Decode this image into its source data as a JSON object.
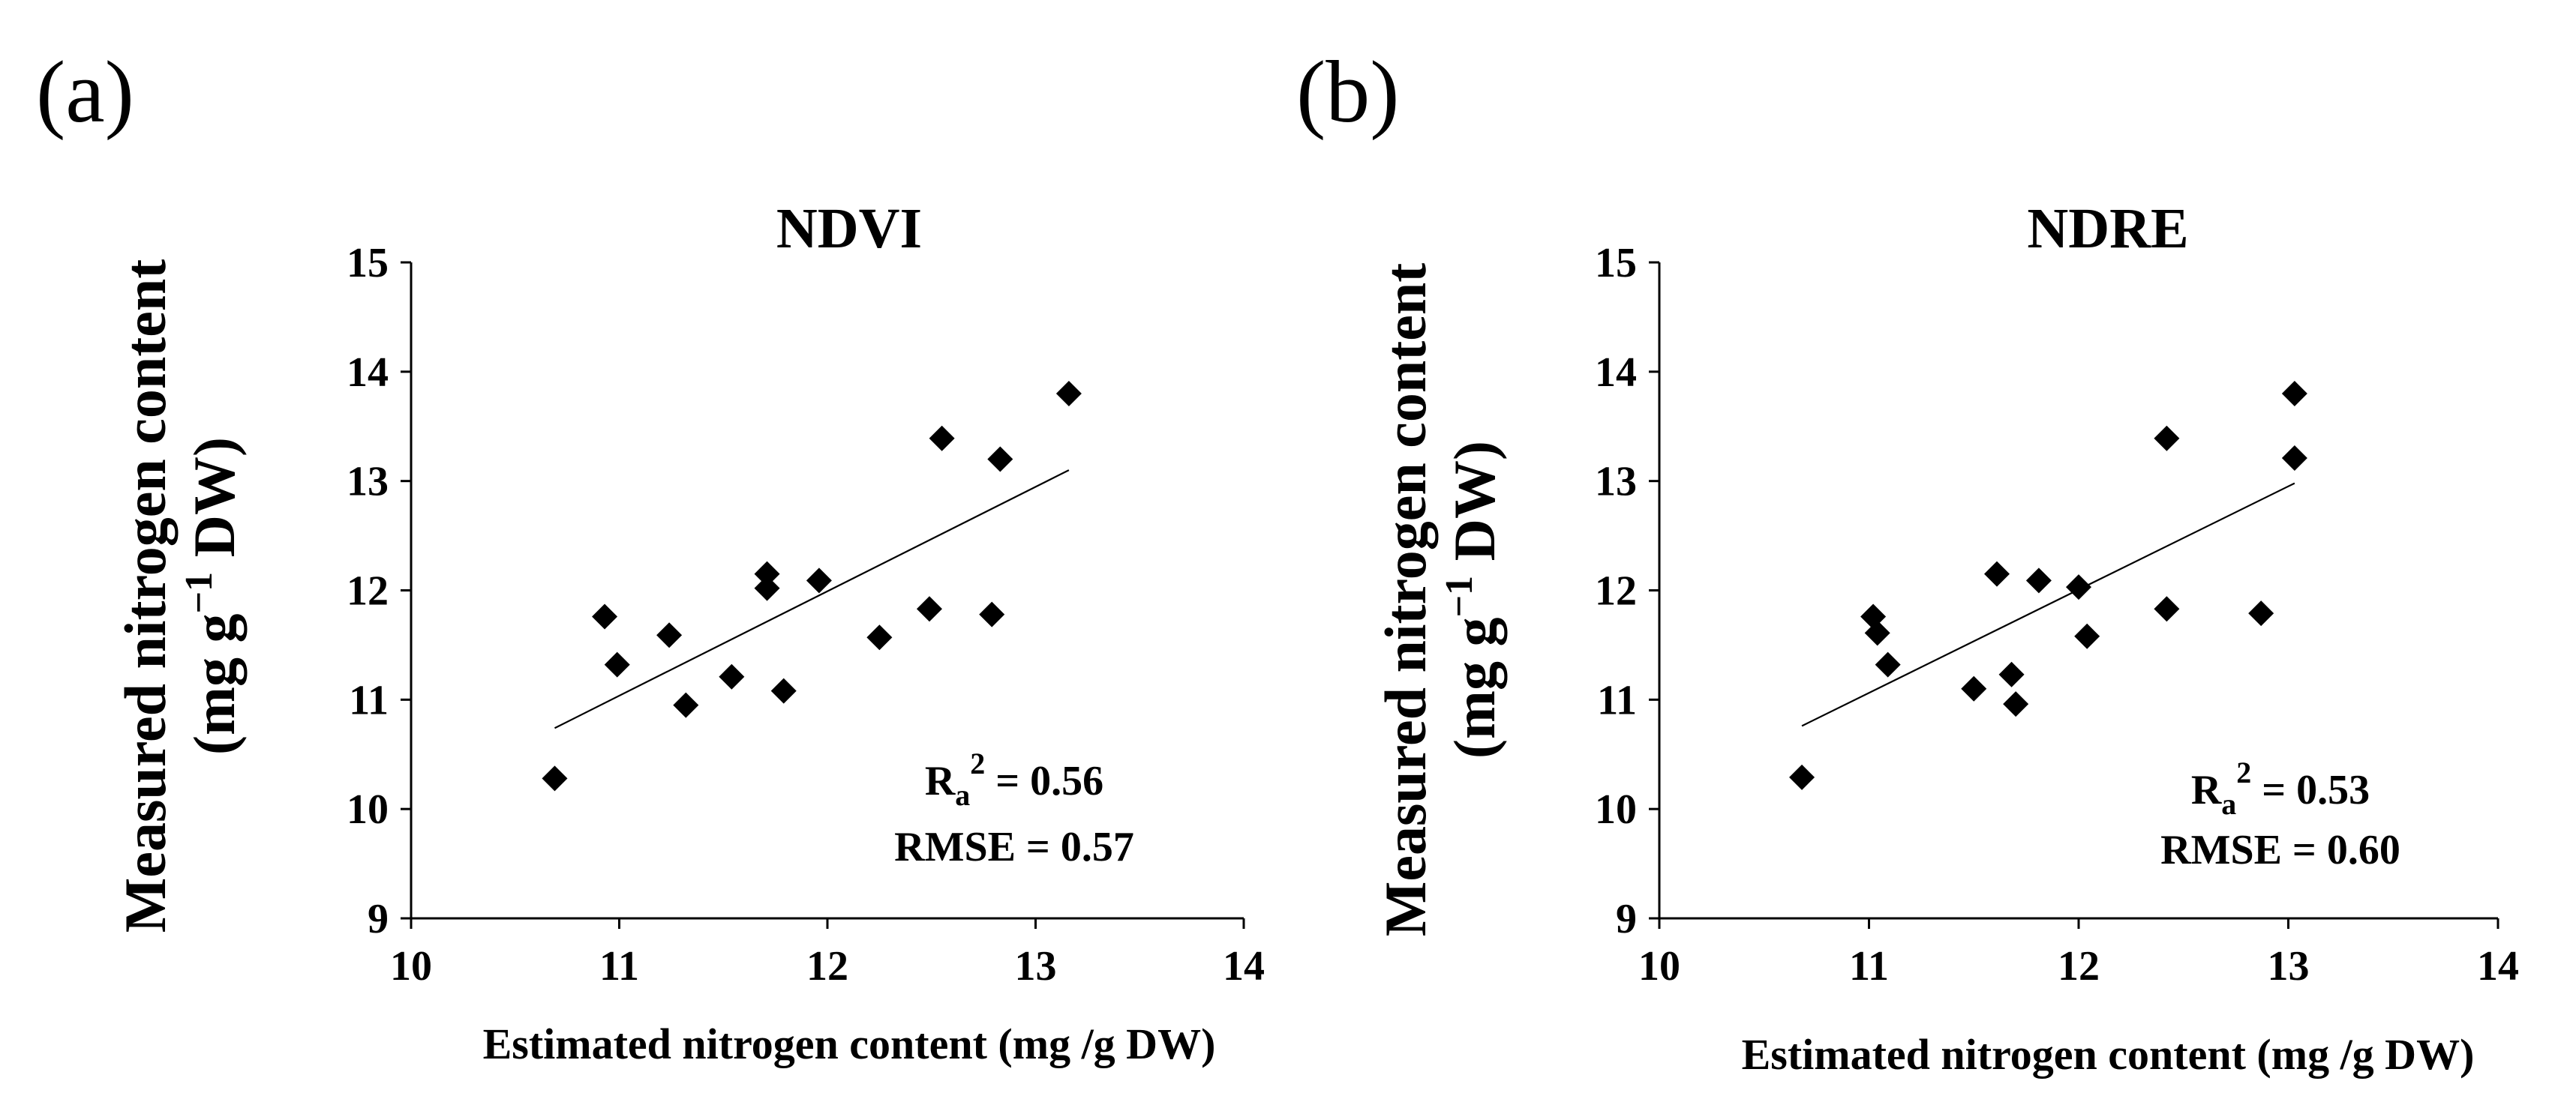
{
  "chart_data": [
    {
      "type": "scatter",
      "panel_label": "(a)",
      "title": "NDVI",
      "xlabel": "Estimated nitrogen content (mg /g DW)",
      "ylabel": [
        "Measured nitrogen content",
        "(mg g",
        "−1",
        " DW)"
      ],
      "xlim": [
        10,
        14
      ],
      "ylim": [
        9,
        15
      ],
      "xticks": [
        "10",
        "11",
        "12",
        "13",
        "14"
      ],
      "yticks": [
        "9",
        "10",
        "11",
        "12",
        "13",
        "14",
        "15"
      ],
      "points": [
        {
          "x": 10.69,
          "y": 10.28
        },
        {
          "x": 10.93,
          "y": 11.76
        },
        {
          "x": 10.99,
          "y": 11.32
        },
        {
          "x": 11.24,
          "y": 11.59
        },
        {
          "x": 11.32,
          "y": 10.95
        },
        {
          "x": 11.54,
          "y": 11.21
        },
        {
          "x": 11.71,
          "y": 12.15
        },
        {
          "x": 11.71,
          "y": 12.02
        },
        {
          "x": 11.79,
          "y": 11.08
        },
        {
          "x": 11.96,
          "y": 12.09
        },
        {
          "x": 12.25,
          "y": 11.57
        },
        {
          "x": 12.49,
          "y": 11.83
        },
        {
          "x": 12.55,
          "y": 13.39
        },
        {
          "x": 12.79,
          "y": 11.78
        },
        {
          "x": 12.83,
          "y": 13.2
        },
        {
          "x": 13.16,
          "y": 13.8
        }
      ],
      "trendline": {
        "x": [
          10.69,
          13.16
        ],
        "y": [
          10.74,
          13.1
        ]
      },
      "stats": {
        "ra2_label": "R",
        "ra2_sub": "a",
        "ra2_sup": "2",
        "ra2_value": " = 0.56",
        "rmse": "RMSE = 0.57"
      }
    },
    {
      "type": "scatter",
      "panel_label": "(b)",
      "title": "NDRE",
      "xlabel": "Estimated nitrogen content (mg /g DW)",
      "ylabel": [
        "Measured nitrogen content",
        "(mg g",
        "−1",
        " DW)"
      ],
      "xlim": [
        10,
        14
      ],
      "ylim": [
        9,
        15
      ],
      "xticks": [
        "10",
        "11",
        "12",
        "13",
        "14"
      ],
      "yticks": [
        "9",
        "10",
        "11",
        "12",
        "13",
        "14",
        "15"
      ],
      "points": [
        {
          "x": 10.68,
          "y": 10.29
        },
        {
          "x": 11.02,
          "y": 11.76
        },
        {
          "x": 11.04,
          "y": 11.61
        },
        {
          "x": 11.09,
          "y": 11.32
        },
        {
          "x": 11.5,
          "y": 11.1
        },
        {
          "x": 11.61,
          "y": 12.15
        },
        {
          "x": 11.68,
          "y": 11.23
        },
        {
          "x": 11.7,
          "y": 10.96
        },
        {
          "x": 11.81,
          "y": 12.09
        },
        {
          "x": 12.0,
          "y": 12.03
        },
        {
          "x": 12.04,
          "y": 11.58
        },
        {
          "x": 12.42,
          "y": 13.39
        },
        {
          "x": 12.42,
          "y": 11.83
        },
        {
          "x": 12.87,
          "y": 11.79
        },
        {
          "x": 13.03,
          "y": 13.8
        },
        {
          "x": 13.03,
          "y": 13.21
        }
      ],
      "trendline": {
        "x": [
          10.68,
          13.03
        ],
        "y": [
          10.76,
          12.98
        ]
      },
      "stats": {
        "ra2_label": "R",
        "ra2_sub": "a",
        "ra2_sup": "2",
        "ra2_value": " = 0.53",
        "rmse": "RMSE = 0.60"
      }
    }
  ]
}
